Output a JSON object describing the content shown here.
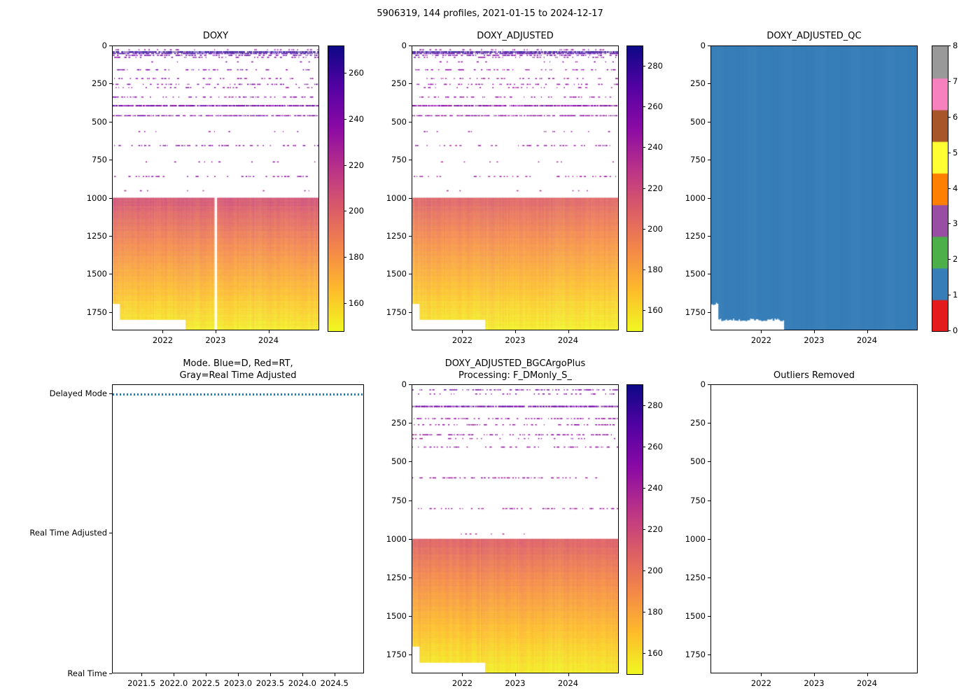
{
  "figure": {
    "title": "5906319, 144 profiles, 2021-01-15 to 2024-12-17",
    "background": "#ffffff",
    "text_color": "#000000"
  },
  "time": {
    "start": 2021.04,
    "end": 2024.96,
    "n_profiles": 144
  },
  "depth_axis": {
    "max": 1870,
    "ticks": [
      0,
      250,
      500,
      750,
      1000,
      1250,
      1500,
      1750
    ]
  },
  "chart_data": [
    {
      "id": "doxy",
      "type": "heatmap",
      "title": "DOXY",
      "x_range": [
        2021.04,
        2024.96
      ],
      "y_range": [
        0,
        1870
      ],
      "x_ticks": [
        "2022",
        "2023",
        "2024"
      ],
      "colorbar": {
        "vmin": 148,
        "vmax": 272,
        "ticks": [
          160,
          180,
          200,
          220,
          240,
          260
        ],
        "colormap": "plasma_reversed"
      },
      "deep_block": {
        "top_depth": 1000,
        "profile": [
          [
            1000,
            207
          ],
          [
            1100,
            199
          ],
          [
            1200,
            192
          ],
          [
            1300,
            185
          ],
          [
            1400,
            179
          ],
          [
            1500,
            173
          ],
          [
            1600,
            167
          ],
          [
            1700,
            161
          ],
          [
            1800,
            156
          ],
          [
            1870,
            152
          ]
        ]
      },
      "bottom_steps": [
        {
          "t_until": 2021.18,
          "depth": 1700
        },
        {
          "t_until": 2022.42,
          "depth": 1805
        },
        {
          "t_until": 2024.96,
          "depth": 1870
        }
      ],
      "missing_profile_at": 2023.0,
      "scatter_rows": [
        {
          "depth": 20,
          "density": 0.22,
          "value": 236
        },
        {
          "depth": 34,
          "density": 0.97,
          "value": 264
        },
        {
          "depth": 45,
          "density": 0.8,
          "value": 256
        },
        {
          "depth": 57,
          "density": 0.5,
          "value": 247
        },
        {
          "depth": 70,
          "density": 0.25,
          "value": 240
        },
        {
          "depth": 100,
          "density": 0.1,
          "value": 238
        },
        {
          "depth": 152,
          "density": 0.3,
          "value": 240
        },
        {
          "depth": 210,
          "density": 0.28,
          "value": 236
        },
        {
          "depth": 248,
          "density": 0.32,
          "value": 241
        },
        {
          "depth": 270,
          "density": 0.18,
          "value": 234
        },
        {
          "depth": 332,
          "density": 0.34,
          "value": 238
        },
        {
          "depth": 388,
          "density": 0.92,
          "value": 243
        },
        {
          "depth": 455,
          "density": 0.8,
          "value": 240
        },
        {
          "depth": 560,
          "density": 0.07,
          "value": 235
        },
        {
          "depth": 652,
          "density": 0.3,
          "value": 238
        },
        {
          "depth": 760,
          "density": 0.05,
          "value": 232
        },
        {
          "depth": 856,
          "density": 0.3,
          "value": 236
        },
        {
          "depth": 950,
          "density": 0.05,
          "value": 230
        }
      ],
      "seed": 11
    },
    {
      "id": "doxy_adjusted",
      "type": "heatmap",
      "title": "DOXY_ADJUSTED",
      "x_range": [
        2021.04,
        2024.96
      ],
      "y_range": [
        0,
        1870
      ],
      "x_ticks": [
        "2022",
        "2023",
        "2024"
      ],
      "colorbar": {
        "vmin": 150,
        "vmax": 290,
        "ticks": [
          160,
          180,
          200,
          220,
          240,
          260,
          280
        ],
        "colormap": "plasma_reversed"
      },
      "deep_block": {
        "top_depth": 1000,
        "profile": [
          [
            1000,
            209
          ],
          [
            1100,
            201
          ],
          [
            1200,
            194
          ],
          [
            1300,
            187
          ],
          [
            1400,
            181
          ],
          [
            1500,
            175
          ],
          [
            1600,
            169
          ],
          [
            1700,
            163
          ],
          [
            1800,
            158
          ],
          [
            1870,
            154
          ]
        ]
      },
      "bottom_steps": [
        {
          "t_until": 2021.18,
          "depth": 1700
        },
        {
          "t_until": 2022.42,
          "depth": 1805
        },
        {
          "t_until": 2024.96,
          "depth": 1870
        }
      ],
      "scatter_rows": [
        {
          "depth": 20,
          "density": 0.22,
          "value": 248
        },
        {
          "depth": 34,
          "density": 0.97,
          "value": 280
        },
        {
          "depth": 45,
          "density": 0.8,
          "value": 268
        },
        {
          "depth": 57,
          "density": 0.5,
          "value": 258
        },
        {
          "depth": 70,
          "density": 0.25,
          "value": 250
        },
        {
          "depth": 100,
          "density": 0.1,
          "value": 246
        },
        {
          "depth": 152,
          "density": 0.3,
          "value": 248
        },
        {
          "depth": 210,
          "density": 0.28,
          "value": 244
        },
        {
          "depth": 248,
          "density": 0.32,
          "value": 250
        },
        {
          "depth": 270,
          "density": 0.18,
          "value": 242
        },
        {
          "depth": 332,
          "density": 0.34,
          "value": 246
        },
        {
          "depth": 388,
          "density": 0.92,
          "value": 251
        },
        {
          "depth": 455,
          "density": 0.8,
          "value": 248
        },
        {
          "depth": 560,
          "density": 0.07,
          "value": 243
        },
        {
          "depth": 652,
          "density": 0.3,
          "value": 246
        },
        {
          "depth": 760,
          "density": 0.05,
          "value": 240
        },
        {
          "depth": 856,
          "density": 0.3,
          "value": 244
        },
        {
          "depth": 950,
          "density": 0.05,
          "value": 238
        }
      ],
      "seed": 23
    },
    {
      "id": "doxy_adjusted_qc",
      "type": "heatmap_qc",
      "title": "DOXY_ADJUSTED_QC",
      "x_range": [
        2021.04,
        2024.96
      ],
      "y_range": [
        0,
        1870
      ],
      "x_ticks": [
        "2022",
        "2023",
        "2024"
      ],
      "fill_qc_value": 1,
      "colorbar": {
        "ticks": [
          0,
          1,
          2,
          3,
          4,
          5,
          6,
          7,
          8
        ],
        "colors": [
          "#e41a1c",
          "#377eb8",
          "#4daf4a",
          "#984ea3",
          "#ff7f00",
          "#ffff33",
          "#a65628",
          "#f781bf",
          "#999999"
        ]
      },
      "bottom_steps": [
        {
          "t_until": 2021.18,
          "depth": 1700
        },
        {
          "t_until": 2022.42,
          "depth": 1805
        },
        {
          "t_until": 2024.96,
          "depth": 1870
        }
      ],
      "seed": 31
    },
    {
      "id": "mode",
      "type": "categorical_line",
      "title_lines": [
        "Mode. Blue=D, Red=RT,",
        "Gray=Real Time Adjusted"
      ],
      "categories": [
        "Delayed Mode",
        "Real Time Adjusted",
        "Real Time"
      ],
      "x_ticks": [
        "2021.5",
        "2022.0",
        "2022.5",
        "2023.0",
        "2023.5",
        "2024.0",
        "2024.5"
      ],
      "series": [
        {
          "name": "profile-mode",
          "value": "Delayed Mode",
          "color": "#1f77b4",
          "marker": "dotted",
          "x_start": 2021.04,
          "x_end": 2024.96
        }
      ]
    },
    {
      "id": "doxy_adjusted_bgcargoplus",
      "type": "heatmap",
      "title_lines": [
        "DOXY_ADJUSTED_BGCArgoPlus",
        "Processing: F_DMonly_S_"
      ],
      "x_range": [
        2021.04,
        2024.96
      ],
      "y_range": [
        0,
        1870
      ],
      "x_ticks": [
        "2022",
        "2023",
        "2024"
      ],
      "colorbar": {
        "vmin": 150,
        "vmax": 290,
        "ticks": [
          160,
          180,
          200,
          220,
          240,
          260,
          280
        ],
        "colormap": "plasma_reversed"
      },
      "deep_block": {
        "top_depth": 1000,
        "profile": [
          [
            1000,
            209
          ],
          [
            1100,
            201
          ],
          [
            1200,
            194
          ],
          [
            1300,
            187
          ],
          [
            1400,
            181
          ],
          [
            1500,
            175
          ],
          [
            1600,
            169
          ],
          [
            1700,
            163
          ],
          [
            1800,
            158
          ],
          [
            1870,
            154
          ]
        ]
      },
      "bottom_steps": [
        {
          "t_until": 2021.18,
          "depth": 1700
        },
        {
          "t_until": 2022.42,
          "depth": 1805
        },
        {
          "t_until": 2024.96,
          "depth": 1870
        }
      ],
      "scatter_rows": [
        {
          "depth": 28,
          "density": 0.45,
          "value": 258
        },
        {
          "depth": 55,
          "density": 0.3,
          "value": 250
        },
        {
          "depth": 135,
          "density": 0.93,
          "value": 260
        },
        {
          "depth": 215,
          "density": 0.4,
          "value": 248
        },
        {
          "depth": 255,
          "density": 0.33,
          "value": 246
        },
        {
          "depth": 320,
          "density": 0.45,
          "value": 248
        },
        {
          "depth": 345,
          "density": 0.22,
          "value": 244
        },
        {
          "depth": 400,
          "density": 0.42,
          "value": 246
        },
        {
          "depth": 600,
          "density": 0.35,
          "value": 244
        },
        {
          "depth": 800,
          "density": 0.3,
          "value": 242
        },
        {
          "depth": 965,
          "density": 0.06,
          "value": 238
        }
      ],
      "seed": 37
    },
    {
      "id": "outliers",
      "type": "empty_axes",
      "title": "Outliers Removed",
      "x_ticks": [
        "2022",
        "2023",
        "2024"
      ],
      "y_ticks": [
        0,
        250,
        500,
        750,
        1000,
        1250,
        1500,
        1750
      ]
    }
  ]
}
